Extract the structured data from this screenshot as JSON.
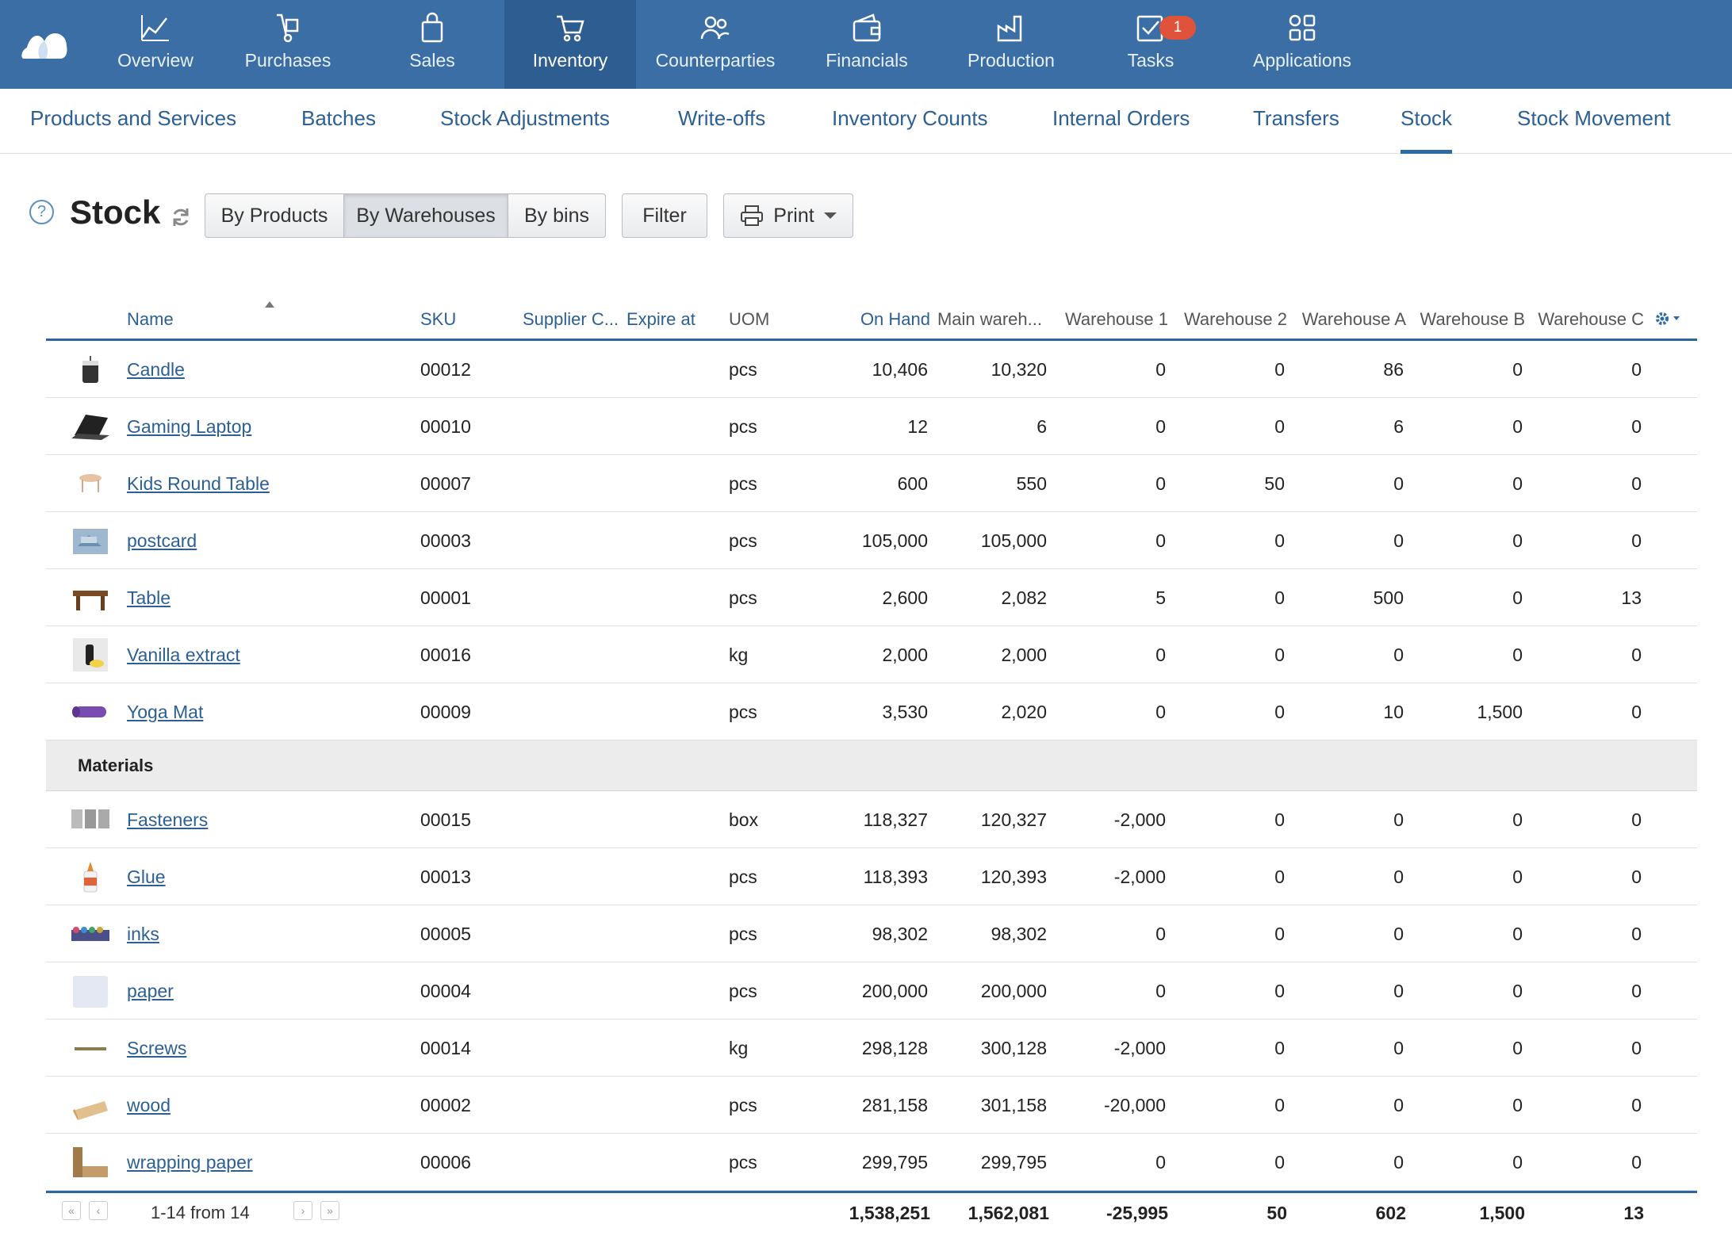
{
  "topnav": {
    "items": [
      {
        "label": "Overview",
        "icon": "chart-line-icon"
      },
      {
        "label": "Purchases",
        "icon": "hand-truck-icon"
      },
      {
        "label": "Sales",
        "icon": "shopping-bag-icon"
      },
      {
        "label": "Inventory",
        "icon": "cart-icon",
        "active": true
      },
      {
        "label": "Counterparties",
        "icon": "people-icon"
      },
      {
        "label": "Financials",
        "icon": "wallet-icon"
      },
      {
        "label": "Production",
        "icon": "factory-icon"
      },
      {
        "label": "Tasks",
        "icon": "checkbox-icon",
        "badge": "1"
      },
      {
        "label": "Applications",
        "icon": "apps-grid-icon"
      }
    ]
  },
  "subnav": {
    "items": [
      "Products and Services",
      "Batches",
      "Stock Adjustments",
      "Write-offs",
      "Inventory Counts",
      "Internal Orders",
      "Transfers",
      "Stock",
      "Stock Movement"
    ],
    "active": "Stock"
  },
  "page": {
    "title": "Stock",
    "help": "?",
    "views": [
      "By Products",
      "By Warehouses",
      "By bins"
    ],
    "active_view": "By Warehouses",
    "filter_label": "Filter",
    "print_label": "Print"
  },
  "table": {
    "headers": {
      "name": "Name",
      "sku": "SKU",
      "supplier": "Supplier C...",
      "expire": "Expire at",
      "uom": "UOM",
      "onhand": "On Hand",
      "main": "Main wareh...",
      "w1": "Warehouse 1",
      "w2": "Warehouse 2",
      "wa": "Warehouse A",
      "wb": "Warehouse B",
      "wc": "Warehouse C"
    },
    "rows": [
      {
        "name": "Candle",
        "sku": "00012",
        "uom": "pcs",
        "onhand": "10,406",
        "main": "10,320",
        "w1": "0",
        "w2": "0",
        "wa": "86",
        "wb": "0",
        "wc": "0",
        "thumb": "candle"
      },
      {
        "name": "Gaming Laptop",
        "sku": "00010",
        "uom": "pcs",
        "onhand": "12",
        "main": "6",
        "w1": "0",
        "w2": "0",
        "wa": "6",
        "wb": "0",
        "wc": "0",
        "thumb": "laptop"
      },
      {
        "name": "Kids Round Table",
        "sku": "00007",
        "uom": "pcs",
        "onhand": "600",
        "main": "550",
        "w1": "0",
        "w2": "50",
        "wa": "0",
        "wb": "0",
        "wc": "0",
        "thumb": "kids-table"
      },
      {
        "name": "postcard",
        "sku": "00003",
        "uom": "pcs",
        "onhand": "105,000",
        "main": "105,000",
        "w1": "0",
        "w2": "0",
        "wa": "0",
        "wb": "0",
        "wc": "0",
        "thumb": "postcard"
      },
      {
        "name": "Table",
        "sku": "00001",
        "uom": "pcs",
        "onhand": "2,600",
        "main": "2,082",
        "w1": "5",
        "w2": "0",
        "wa": "500",
        "wb": "0",
        "wc": "13",
        "thumb": "table"
      },
      {
        "name": "Vanilla extract",
        "sku": "00016",
        "uom": "kg",
        "onhand": "2,000",
        "main": "2,000",
        "w1": "0",
        "w2": "0",
        "wa": "0",
        "wb": "0",
        "wc": "0",
        "thumb": "vanilla"
      },
      {
        "name": "Yoga Mat",
        "sku": "00009",
        "uom": "pcs",
        "onhand": "3,530",
        "main": "2,020",
        "w1": "0",
        "w2": "0",
        "wa": "10",
        "wb": "1,500",
        "wc": "0",
        "thumb": "yoga-mat"
      }
    ],
    "group_label": "Materials",
    "material_rows": [
      {
        "name": "Fasteners",
        "sku": "00015",
        "uom": "box",
        "onhand": "118,327",
        "main": "120,327",
        "w1": "-2,000",
        "w2": "0",
        "wa": "0",
        "wb": "0",
        "wc": "0",
        "thumb": "fasteners"
      },
      {
        "name": "Glue",
        "sku": "00013",
        "uom": "pcs",
        "onhand": "118,393",
        "main": "120,393",
        "w1": "-2,000",
        "w2": "0",
        "wa": "0",
        "wb": "0",
        "wc": "0",
        "thumb": "glue"
      },
      {
        "name": "inks",
        "sku": "00005",
        "uom": "pcs",
        "onhand": "98,302",
        "main": "98,302",
        "w1": "0",
        "w2": "0",
        "wa": "0",
        "wb": "0",
        "wc": "0",
        "thumb": "inks"
      },
      {
        "name": "paper",
        "sku": "00004",
        "uom": "pcs",
        "onhand": "200,000",
        "main": "200,000",
        "w1": "0",
        "w2": "0",
        "wa": "0",
        "wb": "0",
        "wc": "0",
        "thumb": "paper"
      },
      {
        "name": "Screws",
        "sku": "00014",
        "uom": "kg",
        "onhand": "298,128",
        "main": "300,128",
        "w1": "-2,000",
        "w2": "0",
        "wa": "0",
        "wb": "0",
        "wc": "0",
        "thumb": "screws"
      },
      {
        "name": "wood",
        "sku": "00002",
        "uom": "pcs",
        "onhand": "281,158",
        "main": "301,158",
        "w1": "-20,000",
        "w2": "0",
        "wa": "0",
        "wb": "0",
        "wc": "0",
        "thumb": "wood"
      },
      {
        "name": "wrapping paper",
        "sku": "00006",
        "uom": "pcs",
        "onhand": "299,795",
        "main": "299,795",
        "w1": "0",
        "w2": "0",
        "wa": "0",
        "wb": "0",
        "wc": "0",
        "thumb": "wrapping-paper"
      }
    ],
    "pager": {
      "text": "1-14 from 14",
      "first": "«",
      "prev": "‹",
      "next": "›",
      "last": "»"
    },
    "totals": {
      "onhand": "1,538,251",
      "main": "1,562,081",
      "w1": "-25,995",
      "w2": "50",
      "wa": "602",
      "wb": "1,500",
      "wc": "13"
    }
  },
  "colors": {
    "topbar": "#3a6ea5",
    "active_nav": "#2d5d91",
    "link": "#2c5f94",
    "badge": "#e0533b"
  }
}
